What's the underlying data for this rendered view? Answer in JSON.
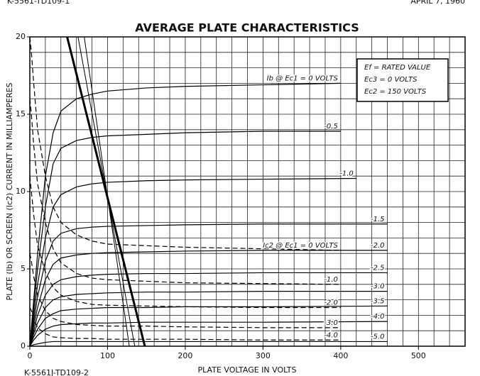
{
  "header": {
    "left": "K-5561-TD109-1",
    "right": "APRIL 7, 1960",
    "footer": "K-5561J-TD109-2"
  },
  "chart_data": {
    "type": "line",
    "title": "AVERAGE PLATE CHARACTERISTICS",
    "xlabel": "PLATE VOLTAGE IN VOLTS",
    "ylabel": "PLATE (Ib) OR SCREEN (Ic2) CURRENT IN MILLIAMPERES",
    "notes": [
      "Ef = RATED VALUE",
      "Ec3 = 0 VOLTS",
      "Ec2 = 150 VOLTS"
    ],
    "xlim": [
      0,
      560
    ],
    "ylim": [
      0,
      20
    ],
    "xticks": [
      0,
      100,
      200,
      300,
      400,
      500
    ],
    "yticks": [
      0,
      5,
      10,
      15,
      20
    ],
    "grid": true,
    "minor_grid": {
      "x": 20,
      "y": 1
    },
    "color": "#000000",
    "series": [
      {
        "name": "Ib @ Ec1 = 0 VOLTS",
        "x": [
          0,
          5,
          10,
          20,
          30,
          40,
          60,
          80,
          100,
          150,
          200,
          300,
          400
        ],
        "values": [
          0,
          3,
          6,
          11,
          13.8,
          15.2,
          16,
          16.3,
          16.5,
          16.7,
          16.8,
          16.9,
          17
        ]
      },
      {
        "name": "-0.5",
        "x": [
          0,
          5,
          10,
          20,
          30,
          40,
          60,
          80,
          100,
          150,
          200,
          300,
          400
        ],
        "values": [
          0,
          2.5,
          5,
          9,
          11.8,
          12.8,
          13.3,
          13.5,
          13.6,
          13.7,
          13.8,
          13.9,
          13.9
        ]
      },
      {
        "name": "-1.0",
        "x": [
          0,
          5,
          10,
          20,
          30,
          40,
          60,
          80,
          100,
          150,
          200,
          300,
          420
        ],
        "values": [
          0,
          2,
          4,
          7,
          9,
          9.8,
          10.3,
          10.5,
          10.6,
          10.7,
          10.75,
          10.8,
          10.85
        ]
      },
      {
        "name": "-1.5",
        "x": [
          0,
          5,
          10,
          20,
          30,
          40,
          60,
          80,
          100,
          150,
          200,
          300,
          460
        ],
        "values": [
          0,
          1.6,
          3.2,
          5.5,
          6.8,
          7.3,
          7.6,
          7.7,
          7.75,
          7.8,
          7.85,
          7.9,
          7.9
        ]
      },
      {
        "name": "-2.0",
        "x": [
          0,
          5,
          10,
          20,
          30,
          40,
          60,
          80,
          100,
          150,
          200,
          300,
          460
        ],
        "values": [
          0,
          1.3,
          2.5,
          4.3,
          5.3,
          5.7,
          5.9,
          6,
          6.05,
          6.1,
          6.15,
          6.2,
          6.2
        ]
      },
      {
        "name": "-2.5",
        "x": [
          0,
          5,
          10,
          20,
          30,
          40,
          60,
          80,
          100,
          150,
          200,
          300,
          460
        ],
        "values": [
          0,
          1,
          2,
          3.3,
          4,
          4.3,
          4.5,
          4.6,
          4.65,
          4.7,
          4.7,
          4.75,
          4.75
        ]
      },
      {
        "name": "-3.0",
        "x": [
          0,
          5,
          10,
          20,
          30,
          40,
          60,
          80,
          100,
          150,
          200,
          300,
          460
        ],
        "values": [
          0,
          0.8,
          1.5,
          2.5,
          3,
          3.2,
          3.35,
          3.4,
          3.45,
          3.5,
          3.5,
          3.55,
          3.55
        ]
      },
      {
        "name": "-3.5",
        "x": [
          0,
          5,
          10,
          20,
          30,
          40,
          60,
          80,
          100,
          150,
          200,
          300,
          460
        ],
        "values": [
          0,
          0.6,
          1.1,
          1.8,
          2.1,
          2.3,
          2.4,
          2.45,
          2.5,
          2.5,
          2.55,
          2.55,
          2.6
        ]
      },
      {
        "name": "-4.0",
        "x": [
          0,
          5,
          10,
          20,
          30,
          40,
          60,
          80,
          100,
          150,
          200,
          300,
          460
        ],
        "values": [
          0,
          0.4,
          0.7,
          1.1,
          1.3,
          1.4,
          1.45,
          1.5,
          1.5,
          1.55,
          1.55,
          1.55,
          1.6
        ]
      },
      {
        "name": "-5.0",
        "x": [
          0,
          5,
          10,
          20,
          30,
          40,
          60,
          80,
          100,
          150,
          200,
          300,
          460
        ],
        "values": [
          0,
          0.1,
          0.15,
          0.25,
          0.3,
          0.3,
          0.3,
          0.3,
          0.3,
          0.3,
          0.3,
          0.3,
          0.3
        ]
      },
      {
        "name": "Ic2 @ Ec1 = 0 VOLTS",
        "dash": true,
        "x": [
          0,
          2,
          5,
          10,
          20,
          30,
          40,
          60,
          80,
          100,
          150,
          200,
          300,
          400
        ],
        "values": [
          20,
          19,
          17,
          14,
          11,
          9,
          8,
          7.2,
          6.8,
          6.6,
          6.5,
          6.4,
          6.3,
          6.2
        ]
      },
      {
        "name": "-1.0",
        "dash": true,
        "x": [
          0,
          2,
          5,
          10,
          20,
          30,
          40,
          60,
          80,
          100,
          150,
          200,
          300,
          400
        ],
        "values": [
          16,
          15,
          13,
          10.5,
          8,
          6.3,
          5.4,
          4.7,
          4.4,
          4.3,
          4.2,
          4.1,
          4.05,
          4
        ]
      },
      {
        "name": "-2.0",
        "dash": true,
        "x": [
          0,
          2,
          5,
          10,
          20,
          30,
          40,
          60,
          80,
          100,
          150,
          200,
          300,
          400
        ],
        "values": [
          11,
          10,
          8.5,
          6.5,
          4.8,
          3.8,
          3.3,
          2.9,
          2.7,
          2.65,
          2.6,
          2.55,
          2.5,
          2.5
        ]
      },
      {
        "name": "-3.0",
        "dash": true,
        "x": [
          0,
          2,
          5,
          10,
          20,
          30,
          40,
          60,
          80,
          100,
          150,
          200,
          300,
          400
        ],
        "values": [
          6,
          5.5,
          4.5,
          3.3,
          2.3,
          1.8,
          1.6,
          1.4,
          1.35,
          1.3,
          1.3,
          1.25,
          1.2,
          1.2
        ]
      },
      {
        "name": "-4.0",
        "dash": true,
        "x": [
          0,
          2,
          5,
          10,
          20,
          30,
          40,
          60,
          80,
          100,
          150,
          200,
          300,
          400
        ],
        "values": [
          2.5,
          2.3,
          1.8,
          1.2,
          0.8,
          0.6,
          0.55,
          0.5,
          0.5,
          0.45,
          0.45,
          0.45,
          0.4,
          0.4
        ]
      }
    ],
    "load_lines": [
      {
        "x": [
          48,
          148
        ],
        "values": [
          20,
          0
        ],
        "width": 3
      },
      {
        "x": [
          62,
          135
        ],
        "values": [
          20,
          0
        ],
        "width": 1
      },
      {
        "x": [
          70,
          128
        ],
        "values": [
          20,
          0
        ],
        "width": 1
      }
    ]
  }
}
